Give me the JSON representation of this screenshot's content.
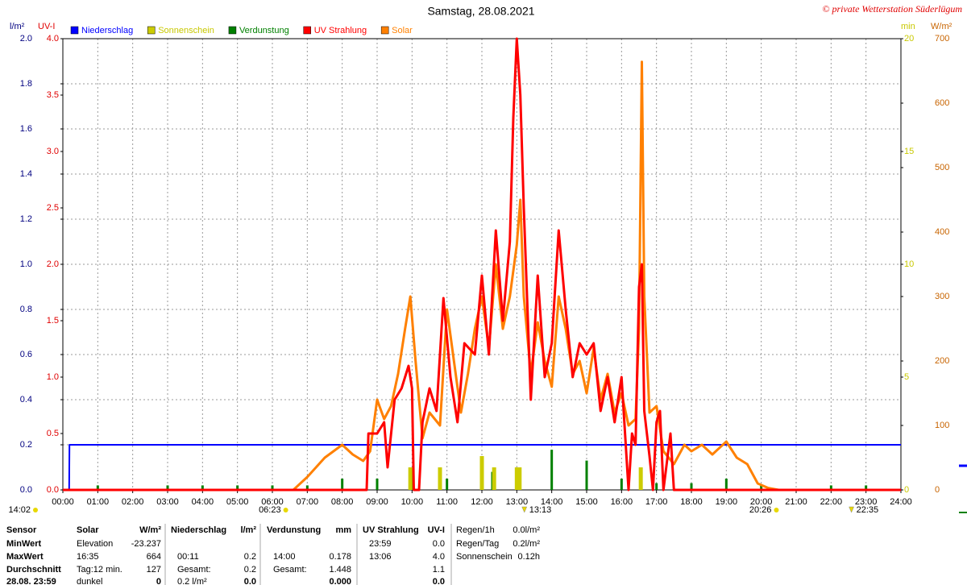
{
  "chart_data": {
    "type": "line",
    "title": "Samstag, 28.08.2021",
    "credit": "© private Wetterstation Süderlügum",
    "xlim": [
      0,
      24
    ],
    "xticks": [
      {
        "value": 0,
        "label": "00:00"
      },
      {
        "value": 1,
        "label": "01:00"
      },
      {
        "value": 2,
        "label": "02:00"
      },
      {
        "value": 3,
        "label": "03:00"
      },
      {
        "value": 4,
        "label": "04:00"
      },
      {
        "value": 5,
        "label": "05:00"
      },
      {
        "value": 6,
        "label": "06:00"
      },
      {
        "value": 7,
        "label": "07:00"
      },
      {
        "value": 8,
        "label": "08:00"
      },
      {
        "value": 9,
        "label": "09:00"
      },
      {
        "value": 10,
        "label": "10:00"
      },
      {
        "value": 11,
        "label": "11:00"
      },
      {
        "value": 12,
        "label": "12:00"
      },
      {
        "value": 13,
        "label": "13:00"
      },
      {
        "value": 14,
        "label": "14:00"
      },
      {
        "value": 15,
        "label": "15:00"
      },
      {
        "value": 16,
        "label": "16:00"
      },
      {
        "value": 17,
        "label": "17:00"
      },
      {
        "value": 18,
        "label": "18:00"
      },
      {
        "value": 19,
        "label": "19:00"
      },
      {
        "value": 20,
        "label": "20:00"
      },
      {
        "value": 21,
        "label": "21:00"
      },
      {
        "value": 22,
        "label": "22:00"
      },
      {
        "value": 23,
        "label": "23:00"
      },
      {
        "value": 24,
        "label": "24:00"
      }
    ],
    "grid": true,
    "axes": [
      {
        "label": "l/m²",
        "color": "#000080",
        "side": "left",
        "lim": [
          0,
          2
        ],
        "ticks": [
          {
            "value": 0,
            "label": "0.0"
          },
          0.2,
          0.4,
          0.6,
          0.8,
          {
            "value": 1,
            "label": "1.0"
          },
          1.2,
          1.4,
          1.6,
          1.8,
          {
            "value": 2,
            "label": "2.0"
          }
        ]
      },
      {
        "label": "UV-I",
        "color": "#e00000",
        "side": "left",
        "lim": [
          0,
          4
        ],
        "ticks": [
          {
            "value": 0,
            "label": "0.0"
          },
          0.5,
          {
            "value": 1,
            "label": "1.0"
          },
          1.5,
          {
            "value": 2,
            "label": "2.0"
          },
          2.5,
          {
            "value": 3,
            "label": "3.0"
          },
          3.5,
          {
            "value": 4,
            "label": "4.0"
          }
        ]
      },
      {
        "label": "min",
        "color": "#c8c800",
        "side": "right",
        "lim": [
          0,
          20
        ],
        "ticks": [
          0,
          5,
          10,
          15,
          20
        ]
      },
      {
        "label": "W/m²",
        "color": "#c86400",
        "side": "right",
        "lim": [
          0,
          700
        ],
        "ticks": [
          0,
          100,
          200,
          300,
          400,
          500,
          600,
          700
        ]
      }
    ],
    "series": [
      {
        "name": "Niederschlag",
        "color": "#0000ff",
        "mark": "line",
        "axis": 0,
        "x": [
          0,
          0.18,
          0.19,
          24
        ],
        "values": [
          0,
          0,
          0.2,
          0.2
        ]
      },
      {
        "name": "Sonnenschein",
        "color": "#cccc00",
        "text_color": "#c8c800",
        "mark": "bar",
        "axis": 2,
        "x": [
          9.95,
          10.8,
          12.0,
          12.35,
          13.0,
          13.08,
          16.55
        ],
        "values": [
          1.0,
          1.0,
          1.5,
          1.0,
          1.0,
          1.0,
          1.0
        ]
      },
      {
        "name": "Verdunstung",
        "color": "#008000",
        "mark": "bar",
        "axis": 0,
        "x": [
          1,
          3,
          4,
          5,
          6,
          7,
          8,
          9,
          10,
          11,
          12,
          12.3,
          13,
          14,
          15,
          16,
          17,
          18,
          19,
          20,
          22,
          23
        ],
        "values": [
          0.02,
          0.02,
          0.02,
          0.02,
          0.02,
          0.02,
          0.05,
          0.05,
          0.1,
          0.05,
          0.15,
          0.08,
          0.1,
          0.178,
          0.13,
          0.05,
          0.03,
          0.03,
          0.05,
          0.02,
          0.02,
          0.02
        ]
      },
      {
        "name": "UV Strahlung",
        "color": "#ff0000",
        "mark": "line",
        "axis": 1,
        "x": [
          0,
          8.7,
          8.75,
          9.0,
          9.2,
          9.3,
          9.5,
          9.7,
          9.9,
          10.0,
          10.05,
          10.2,
          10.3,
          10.5,
          10.7,
          10.9,
          11.1,
          11.3,
          11.5,
          11.8,
          12.0,
          12.2,
          12.4,
          12.6,
          12.8,
          12.9,
          13.0,
          13.1,
          13.2,
          13.4,
          13.6,
          13.8,
          14.0,
          14.2,
          14.4,
          14.6,
          14.8,
          15.0,
          15.2,
          15.4,
          15.6,
          15.8,
          16.0,
          16.2,
          16.3,
          16.4,
          16.5,
          16.58,
          16.65,
          16.8,
          16.9,
          17.0,
          17.1,
          17.2,
          17.4,
          17.5,
          24
        ],
        "values": [
          0,
          0,
          0.5,
          0.5,
          0.6,
          0.2,
          0.8,
          0.9,
          1.1,
          0.9,
          0,
          0,
          0.6,
          0.9,
          0.7,
          1.7,
          1.0,
          0.6,
          1.3,
          1.2,
          1.9,
          1.2,
          2.3,
          1.5,
          2.2,
          3.3,
          4.0,
          3.5,
          2.5,
          0.8,
          1.9,
          1.0,
          1.3,
          2.3,
          1.6,
          1.0,
          1.3,
          1.2,
          1.3,
          0.7,
          1.0,
          0.6,
          1.0,
          0,
          0.5,
          0.4,
          1.8,
          2.0,
          0.7,
          0.3,
          0,
          0.6,
          0.7,
          0,
          0.5,
          0,
          0
        ]
      },
      {
        "name": "Solar",
        "color": "#ff8000",
        "mark": "line",
        "axis": 3,
        "x": [
          0,
          6.6,
          7.0,
          7.5,
          8.0,
          8.3,
          8.6,
          8.8,
          9.0,
          9.2,
          9.4,
          9.6,
          9.8,
          9.95,
          10.1,
          10.3,
          10.5,
          10.8,
          11.0,
          11.2,
          11.4,
          11.6,
          11.8,
          12.0,
          12.2,
          12.4,
          12.6,
          12.8,
          13.0,
          13.1,
          13.2,
          13.4,
          13.6,
          13.8,
          14.0,
          14.2,
          14.4,
          14.6,
          14.8,
          15.0,
          15.2,
          15.4,
          15.6,
          15.8,
          16.0,
          16.2,
          16.4,
          16.5,
          16.58,
          16.65,
          16.8,
          17.0,
          17.2,
          17.5,
          17.8,
          18.0,
          18.3,
          18.6,
          19.0,
          19.3,
          19.6,
          19.9,
          20.2,
          20.5,
          24
        ],
        "values": [
          0,
          0,
          20,
          50,
          70,
          55,
          45,
          60,
          140,
          110,
          130,
          180,
          250,
          300,
          200,
          80,
          120,
          100,
          280,
          200,
          120,
          180,
          250,
          300,
          220,
          350,
          250,
          300,
          380,
          450,
          300,
          180,
          260,
          200,
          160,
          300,
          250,
          180,
          200,
          150,
          220,
          140,
          180,
          120,
          150,
          100,
          110,
          250,
          664,
          300,
          120,
          130,
          60,
          40,
          70,
          60,
          70,
          55,
          75,
          50,
          40,
          10,
          3,
          0,
          0
        ]
      }
    ],
    "sun_times": [
      {
        "label": "14:02",
        "icon": "dot"
      },
      {
        "label": "06:23",
        "icon": "dot",
        "x": 6.383
      },
      {
        "label": "13:13",
        "icon": "triangle",
        "x": 13.217
      },
      {
        "label": "20:26",
        "icon": "dot",
        "x": 20.433
      },
      {
        "label": "22:35",
        "icon": "triangle",
        "x": 22.583
      }
    ]
  },
  "stats": {
    "row_labels": [
      "Sensor",
      "MinWert",
      "MaxWert",
      "Durchschnitt",
      "28.08. 23:59"
    ],
    "columns": [
      {
        "title": "Solar",
        "unit": "W/m²",
        "cells": [
          [
            "Elevation",
            "-23.237"
          ],
          [
            "16:35",
            "664"
          ],
          [
            "Tag:12 min.",
            "127"
          ],
          [
            "dunkel",
            "0"
          ]
        ]
      },
      {
        "title": "Niederschlag",
        "unit": "l/m²",
        "cells": [
          null,
          [
            "00:11",
            "0.2"
          ],
          [
            "Gesamt:",
            "0.2"
          ],
          [
            "0.2 l/m²",
            "0.0"
          ]
        ]
      },
      {
        "title": "Verdunstung",
        "unit": "mm",
        "cells": [
          null,
          [
            "14:00",
            "0.178"
          ],
          [
            "Gesamt:",
            "1.448"
          ],
          [
            null,
            "0.000"
          ]
        ]
      },
      {
        "title": "UV Strahlung",
        "unit": "UV-I",
        "cells": [
          [
            "23:59",
            "0.0"
          ],
          [
            "13:06",
            "4.0"
          ],
          [
            null,
            "1.1"
          ],
          [
            null,
            "0.0"
          ]
        ]
      }
    ],
    "extra": [
      [
        "Regen/1h",
        "0.0l/m²"
      ],
      [
        "Regen/Tag",
        "0.2l/m²"
      ],
      [
        "Sonnenschein",
        "0.12h"
      ]
    ]
  }
}
